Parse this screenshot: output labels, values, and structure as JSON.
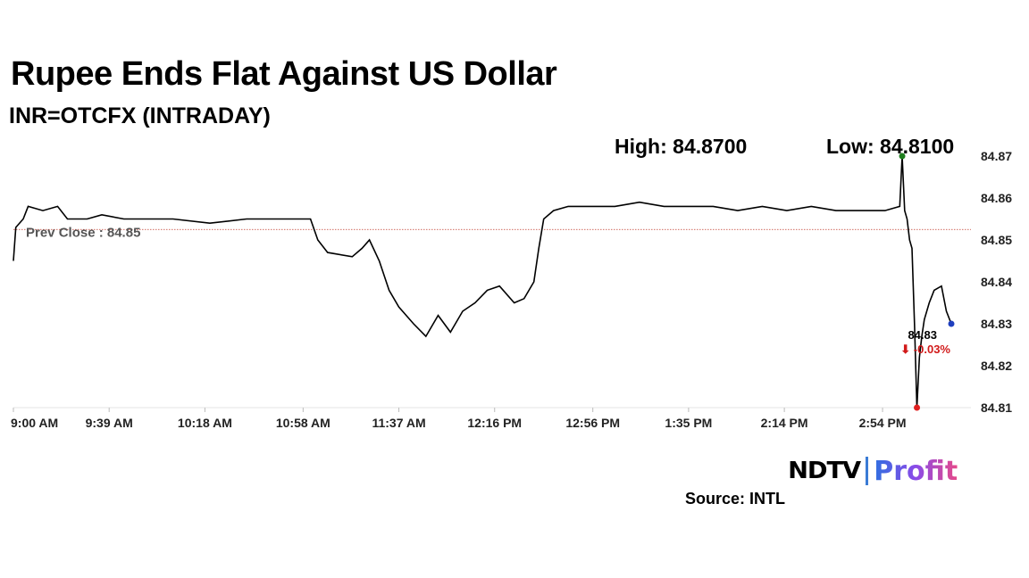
{
  "title": "Rupee Ends Flat Against US Dollar",
  "subtitle": "INR=OTCFX (INTRADAY)",
  "high_label": "High: 84.8700",
  "low_label": "Low: 84.8100",
  "prev_close_label": "Prev Close : 84.85",
  "last_value_label": "84.83",
  "change_label": "⬇ -0.03%",
  "brand_ndtv": "NDTV",
  "brand_profit": "Profit",
  "source": "Source: INTL",
  "colors": {
    "line": "#000000",
    "prev_close": "#c0392b",
    "high_marker": "#1e7e1e",
    "low_marker": "#e02020",
    "last_marker": "#1f3fbf",
    "change": "#d11a1a",
    "grid": "#e6e6e6"
  },
  "chart_data": {
    "type": "line",
    "title": "Rupee Ends Flat Against US Dollar",
    "subtitle": "INR=OTCFX (INTRADAY)",
    "x_ticks": [
      "9:00 AM",
      "9:39 AM",
      "10:18 AM",
      "10:58 AM",
      "11:37 AM",
      "12:16 PM",
      "12:56 PM",
      "1:35 PM",
      "2:14 PM",
      "2:54 PM"
    ],
    "y_ticks": [
      "84.87",
      "84.86",
      "84.85",
      "84.84",
      "84.83",
      "84.82",
      "84.81"
    ],
    "ylim": [
      84.81,
      84.87
    ],
    "x_minutes_range": [
      0,
      390
    ],
    "prev_close": 84.8525,
    "high": {
      "value": 84.87,
      "at": "3:02 PM"
    },
    "low": {
      "value": 84.81,
      "at": "3:08 PM"
    },
    "last": {
      "value": 84.83,
      "change_pct": -0.03
    },
    "series": [
      {
        "points": [
          [
            "9:00 AM",
            84.845
          ],
          [
            "9:01 AM",
            84.853
          ],
          [
            "9:04 AM",
            84.855
          ],
          [
            "9:06 AM",
            84.858
          ],
          [
            "9:12 AM",
            84.857
          ],
          [
            "9:18 AM",
            84.858
          ],
          [
            "9:22 AM",
            84.855
          ],
          [
            "9:30 AM",
            84.855
          ],
          [
            "9:36 AM",
            84.856
          ],
          [
            "9:45 AM",
            84.855
          ],
          [
            "9:55 AM",
            84.855
          ],
          [
            "10:05 AM",
            84.855
          ],
          [
            "10:20 AM",
            84.854
          ],
          [
            "10:35 AM",
            84.855
          ],
          [
            "10:55 AM",
            84.855
          ],
          [
            "11:01 AM",
            84.855
          ],
          [
            "11:04 AM",
            84.85
          ],
          [
            "11:08 AM",
            84.847
          ],
          [
            "11:18 AM",
            84.846
          ],
          [
            "11:22 AM",
            84.848
          ],
          [
            "11:25 AM",
            84.85
          ],
          [
            "11:29 AM",
            84.845
          ],
          [
            "11:33 AM",
            84.838
          ],
          [
            "11:37 AM",
            84.834
          ],
          [
            "11:43 AM",
            84.83
          ],
          [
            "11:48 AM",
            84.827
          ],
          [
            "11:53 AM",
            84.832
          ],
          [
            "11:58 AM",
            84.828
          ],
          [
            "12:03 PM",
            84.833
          ],
          [
            "12:08 PM",
            84.835
          ],
          [
            "12:13 PM",
            84.838
          ],
          [
            "12:18 PM",
            84.839
          ],
          [
            "12:24 PM",
            84.835
          ],
          [
            "12:28 PM",
            84.836
          ],
          [
            "12:32 PM",
            84.84
          ],
          [
            "12:34 PM",
            84.848
          ],
          [
            "12:36 PM",
            84.855
          ],
          [
            "12:40 PM",
            84.857
          ],
          [
            "12:46 PM",
            84.858
          ],
          [
            "12:55 PM",
            84.858
          ],
          [
            "1:05 PM",
            84.858
          ],
          [
            "1:15 PM",
            84.859
          ],
          [
            "1:25 PM",
            84.858
          ],
          [
            "1:35 PM",
            84.858
          ],
          [
            "1:45 PM",
            84.858
          ],
          [
            "1:55 PM",
            84.857
          ],
          [
            "2:05 PM",
            84.858
          ],
          [
            "2:15 PM",
            84.857
          ],
          [
            "2:25 PM",
            84.858
          ],
          [
            "2:35 PM",
            84.857
          ],
          [
            "2:45 PM",
            84.857
          ],
          [
            "2:55 PM",
            84.857
          ],
          [
            "3:01 PM",
            84.858
          ],
          [
            "3:02 PM",
            84.87
          ],
          [
            "3:03 PM",
            84.857
          ],
          [
            "3:04 PM",
            84.855
          ],
          [
            "3:05 PM",
            84.85
          ],
          [
            "3:06 PM",
            84.848
          ],
          [
            "3:07 PM",
            84.83
          ],
          [
            "3:08 PM",
            84.81
          ],
          [
            "3:09 PM",
            84.822
          ],
          [
            "3:10 PM",
            84.827
          ],
          [
            "3:11 PM",
            84.831
          ],
          [
            "3:13 PM",
            84.835
          ],
          [
            "3:15 PM",
            84.838
          ],
          [
            "3:18 PM",
            84.839
          ],
          [
            "3:20 PM",
            84.833
          ],
          [
            "3:22 PM",
            84.83
          ]
        ]
      }
    ]
  }
}
